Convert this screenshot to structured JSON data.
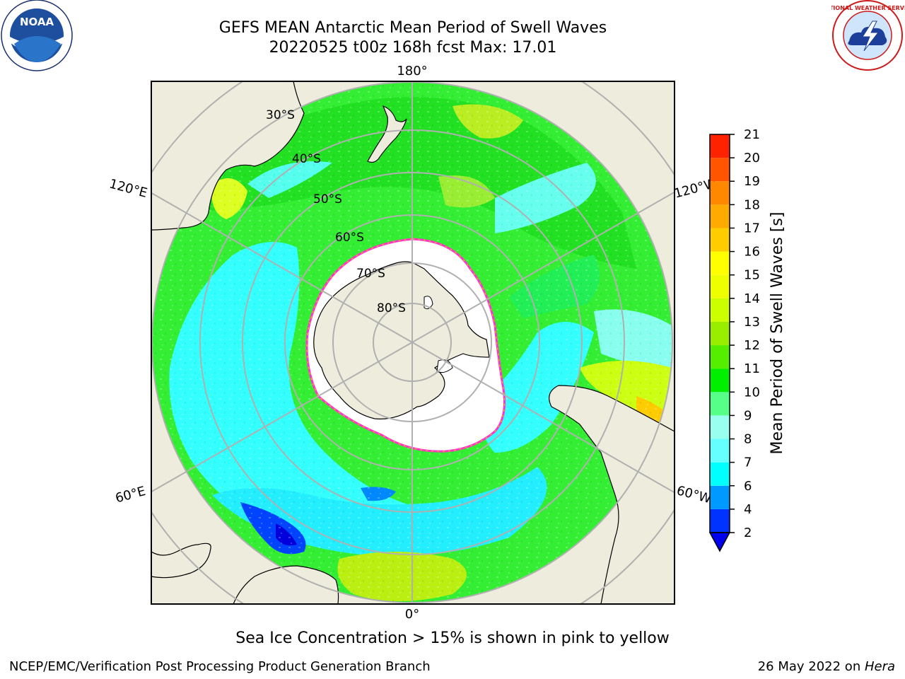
{
  "header": {
    "title_line1": "GEFS MEAN Antarctic Mean Period of Swell Waves",
    "title_line2": "20220525 t00z 168h fcst   Max: 17.01"
  },
  "logos": {
    "left": {
      "icon": "noaa-logo",
      "text": "NOAA"
    },
    "right": {
      "icon": "national-weather-service-logo",
      "text": "NATIONAL WEATHER SERVICE"
    }
  },
  "map": {
    "projection": "south-polar-stereographic",
    "longitude_labels": {
      "top": "180°",
      "bottom": "0°",
      "left_upper": "120°E",
      "right_upper": "120°W",
      "left_lower": "60°E",
      "right_lower": "60°W"
    },
    "latitude_labels": [
      "30°S",
      "40°S",
      "50°S",
      "60°S",
      "70°S",
      "80°S"
    ],
    "colors": {
      "land": "#eeecdc",
      "ice": "#ffffff",
      "ice_edge": "#ff33cc",
      "grid": "#b0b0b0"
    }
  },
  "colorbar": {
    "label": "Mean Period of Swell Waves [s]",
    "ticks": [
      "2",
      "4",
      "6",
      "7",
      "8",
      "9",
      "10",
      "11",
      "12",
      "13",
      "14",
      "15",
      "16",
      "17",
      "18",
      "19",
      "20",
      "21"
    ],
    "colors": [
      "#0033ff",
      "#0099ff",
      "#00ffff",
      "#66ffff",
      "#99ffee",
      "#55ff88",
      "#00ee00",
      "#55ee00",
      "#99ee00",
      "#ccff00",
      "#eeff00",
      "#ffff00",
      "#ffcc00",
      "#ffaa00",
      "#ff8800",
      "#ff5500",
      "#ff2200"
    ],
    "extend_color": "#0000ee"
  },
  "footer": {
    "note": "Sea Ice Concentration > 15% is shown in pink to yellow",
    "credit_left": "NCEP/EMC/Verification Post Processing Product Generation Branch",
    "credit_date": "26 May 2022 on ",
    "credit_machine": "Hera"
  }
}
